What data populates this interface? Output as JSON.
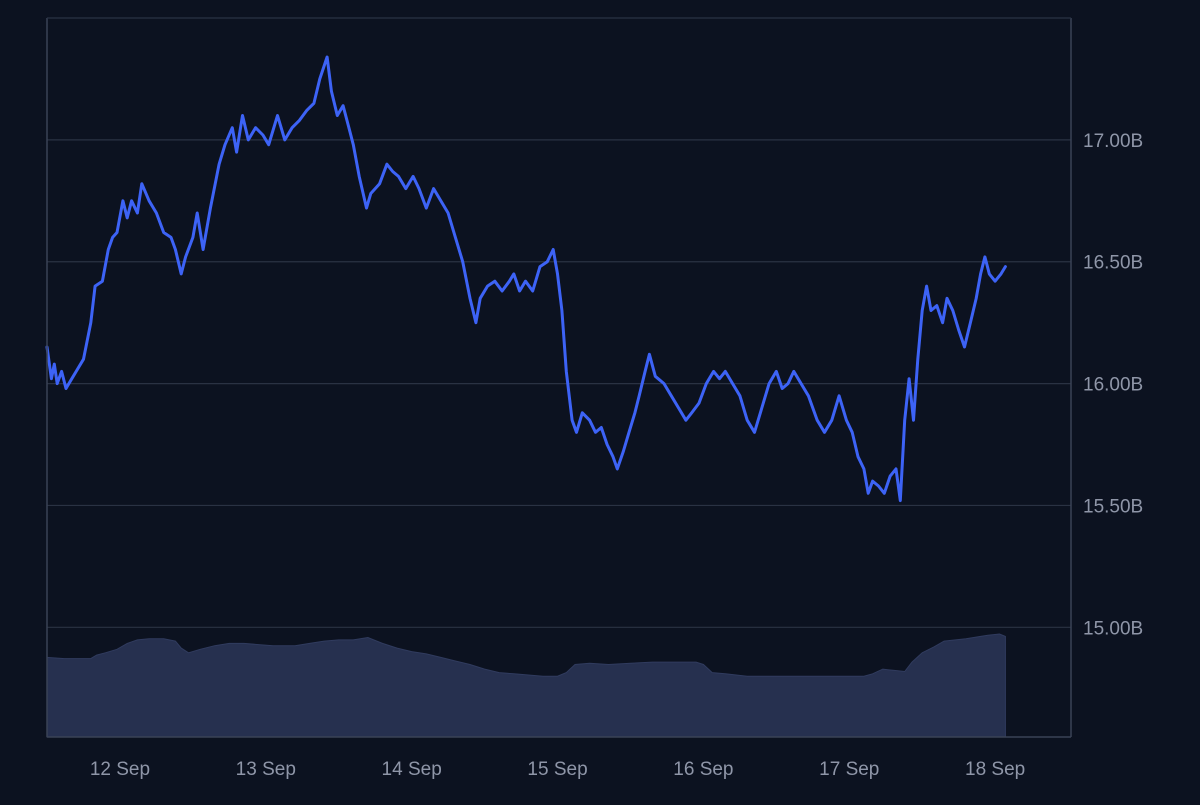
{
  "chart_data": {
    "type": "line",
    "title": "",
    "xlabel": "",
    "ylabel": "",
    "ylim": [
      14.55,
      17.5
    ],
    "xlim": [
      0,
      7.02
    ],
    "x_ticks": [
      {
        "x": 0.5,
        "label": "12 Sep"
      },
      {
        "x": 1.5,
        "label": "13 Sep"
      },
      {
        "x": 2.5,
        "label": "14 Sep"
      },
      {
        "x": 3.5,
        "label": "15 Sep"
      },
      {
        "x": 4.5,
        "label": "16 Sep"
      },
      {
        "x": 5.5,
        "label": "17 Sep"
      },
      {
        "x": 6.5,
        "label": "18 Sep"
      }
    ],
    "y_ticks": [
      {
        "value": 15.0,
        "label": "15.00B"
      },
      {
        "value": 15.5,
        "label": "15.50B"
      },
      {
        "value": 16.0,
        "label": "16.00B"
      },
      {
        "value": 16.5,
        "label": "16.50B"
      },
      {
        "value": 17.0,
        "label": "17.00B"
      }
    ],
    "grid": true,
    "line_color": "#3d63f6",
    "volume_color": "#26304f",
    "series": [
      {
        "values": [
          [
            0.0,
            16.15
          ],
          [
            0.03,
            16.02
          ],
          [
            0.05,
            16.08
          ],
          [
            0.07,
            16.0
          ],
          [
            0.1,
            16.05
          ],
          [
            0.13,
            15.98
          ],
          [
            0.17,
            16.02
          ],
          [
            0.2,
            16.05
          ],
          [
            0.25,
            16.1
          ],
          [
            0.3,
            16.25
          ],
          [
            0.33,
            16.4
          ],
          [
            0.38,
            16.42
          ],
          [
            0.42,
            16.55
          ],
          [
            0.45,
            16.6
          ],
          [
            0.48,
            16.62
          ],
          [
            0.52,
            16.75
          ],
          [
            0.55,
            16.68
          ],
          [
            0.58,
            16.75
          ],
          [
            0.62,
            16.7
          ],
          [
            0.65,
            16.82
          ],
          [
            0.7,
            16.75
          ],
          [
            0.75,
            16.7
          ],
          [
            0.8,
            16.62
          ],
          [
            0.85,
            16.6
          ],
          [
            0.88,
            16.55
          ],
          [
            0.92,
            16.45
          ],
          [
            0.95,
            16.52
          ],
          [
            1.0,
            16.6
          ],
          [
            1.03,
            16.7
          ],
          [
            1.07,
            16.55
          ],
          [
            1.12,
            16.72
          ],
          [
            1.18,
            16.9
          ],
          [
            1.22,
            16.98
          ],
          [
            1.27,
            17.05
          ],
          [
            1.3,
            16.95
          ],
          [
            1.34,
            17.1
          ],
          [
            1.38,
            17.0
          ],
          [
            1.43,
            17.05
          ],
          [
            1.48,
            17.02
          ],
          [
            1.52,
            16.98
          ],
          [
            1.58,
            17.1
          ],
          [
            1.63,
            17.0
          ],
          [
            1.68,
            17.05
          ],
          [
            1.73,
            17.08
          ],
          [
            1.78,
            17.12
          ],
          [
            1.83,
            17.15
          ],
          [
            1.87,
            17.25
          ],
          [
            1.92,
            17.34
          ],
          [
            1.95,
            17.2
          ],
          [
            1.99,
            17.1
          ],
          [
            2.03,
            17.14
          ],
          [
            2.07,
            17.05
          ],
          [
            2.1,
            16.98
          ],
          [
            2.14,
            16.85
          ],
          [
            2.19,
            16.72
          ],
          [
            2.22,
            16.78
          ],
          [
            2.28,
            16.82
          ],
          [
            2.33,
            16.9
          ],
          [
            2.37,
            16.87
          ],
          [
            2.41,
            16.85
          ],
          [
            2.46,
            16.8
          ],
          [
            2.51,
            16.85
          ],
          [
            2.55,
            16.8
          ],
          [
            2.6,
            16.72
          ],
          [
            2.65,
            16.8
          ],
          [
            2.7,
            16.75
          ],
          [
            2.75,
            16.7
          ],
          [
            2.8,
            16.6
          ],
          [
            2.85,
            16.5
          ],
          [
            2.9,
            16.35
          ],
          [
            2.94,
            16.25
          ],
          [
            2.97,
            16.35
          ],
          [
            3.02,
            16.4
          ],
          [
            3.07,
            16.42
          ],
          [
            3.12,
            16.38
          ],
          [
            3.17,
            16.42
          ],
          [
            3.2,
            16.45
          ],
          [
            3.24,
            16.38
          ],
          [
            3.28,
            16.42
          ],
          [
            3.33,
            16.38
          ],
          [
            3.38,
            16.48
          ],
          [
            3.43,
            16.5
          ],
          [
            3.47,
            16.55
          ],
          [
            3.5,
            16.45
          ],
          [
            3.53,
            16.3
          ],
          [
            3.56,
            16.05
          ],
          [
            3.6,
            15.85
          ],
          [
            3.63,
            15.8
          ],
          [
            3.67,
            15.88
          ],
          [
            3.72,
            15.85
          ],
          [
            3.76,
            15.8
          ],
          [
            3.8,
            15.82
          ],
          [
            3.84,
            15.75
          ],
          [
            3.88,
            15.7
          ],
          [
            3.91,
            15.65
          ],
          [
            3.95,
            15.72
          ],
          [
            3.99,
            15.8
          ],
          [
            4.03,
            15.88
          ],
          [
            4.06,
            15.95
          ],
          [
            4.1,
            16.05
          ],
          [
            4.13,
            16.12
          ],
          [
            4.17,
            16.03
          ],
          [
            4.23,
            16.0
          ],
          [
            4.28,
            15.95
          ],
          [
            4.33,
            15.9
          ],
          [
            4.38,
            15.85
          ],
          [
            4.42,
            15.88
          ],
          [
            4.47,
            15.92
          ],
          [
            4.52,
            16.0
          ],
          [
            4.57,
            16.05
          ],
          [
            4.61,
            16.02
          ],
          [
            4.65,
            16.05
          ],
          [
            4.7,
            16.0
          ],
          [
            4.75,
            15.95
          ],
          [
            4.8,
            15.85
          ],
          [
            4.85,
            15.8
          ],
          [
            4.9,
            15.9
          ],
          [
            4.95,
            16.0
          ],
          [
            5.0,
            16.05
          ],
          [
            5.04,
            15.98
          ],
          [
            5.08,
            16.0
          ],
          [
            5.12,
            16.05
          ],
          [
            5.17,
            16.0
          ],
          [
            5.22,
            15.95
          ],
          [
            5.28,
            15.85
          ],
          [
            5.33,
            15.8
          ],
          [
            5.38,
            15.85
          ],
          [
            5.43,
            15.95
          ],
          [
            5.48,
            15.85
          ],
          [
            5.52,
            15.8
          ],
          [
            5.56,
            15.7
          ],
          [
            5.6,
            15.65
          ],
          [
            5.63,
            15.55
          ],
          [
            5.66,
            15.6
          ],
          [
            5.7,
            15.58
          ],
          [
            5.74,
            15.55
          ],
          [
            5.78,
            15.62
          ],
          [
            5.82,
            15.65
          ],
          [
            5.85,
            15.52
          ],
          [
            5.88,
            15.85
          ],
          [
            5.91,
            16.02
          ],
          [
            5.94,
            15.85
          ],
          [
            5.97,
            16.1
          ],
          [
            6.0,
            16.3
          ],
          [
            6.03,
            16.4
          ],
          [
            6.06,
            16.3
          ],
          [
            6.1,
            16.32
          ],
          [
            6.14,
            16.25
          ],
          [
            6.17,
            16.35
          ],
          [
            6.21,
            16.3
          ],
          [
            6.25,
            16.22
          ],
          [
            6.29,
            16.15
          ],
          [
            6.33,
            16.25
          ],
          [
            6.37,
            16.35
          ],
          [
            6.4,
            16.45
          ],
          [
            6.43,
            16.52
          ],
          [
            6.46,
            16.45
          ],
          [
            6.5,
            16.42
          ],
          [
            6.54,
            16.45
          ],
          [
            6.57,
            16.48
          ]
        ]
      }
    ],
    "volume": {
      "min": 0,
      "max": 1.0,
      "points": [
        [
          0.0,
          0.68
        ],
        [
          0.12,
          0.67
        ],
        [
          0.3,
          0.67
        ],
        [
          0.34,
          0.7
        ],
        [
          0.4,
          0.72
        ],
        [
          0.48,
          0.75
        ],
        [
          0.55,
          0.8
        ],
        [
          0.62,
          0.83
        ],
        [
          0.7,
          0.84
        ],
        [
          0.8,
          0.84
        ],
        [
          0.88,
          0.82
        ],
        [
          0.92,
          0.76
        ],
        [
          0.97,
          0.72
        ],
        [
          1.05,
          0.75
        ],
        [
          1.15,
          0.78
        ],
        [
          1.25,
          0.8
        ],
        [
          1.35,
          0.8
        ],
        [
          1.45,
          0.79
        ],
        [
          1.55,
          0.78
        ],
        [
          1.7,
          0.78
        ],
        [
          1.8,
          0.8
        ],
        [
          1.9,
          0.82
        ],
        [
          2.0,
          0.83
        ],
        [
          2.1,
          0.83
        ],
        [
          2.2,
          0.85
        ],
        [
          2.3,
          0.8
        ],
        [
          2.4,
          0.76
        ],
        [
          2.5,
          0.73
        ],
        [
          2.6,
          0.71
        ],
        [
          2.7,
          0.68
        ],
        [
          2.8,
          0.65
        ],
        [
          2.9,
          0.62
        ],
        [
          3.0,
          0.58
        ],
        [
          3.1,
          0.55
        ],
        [
          3.2,
          0.54
        ],
        [
          3.3,
          0.53
        ],
        [
          3.4,
          0.52
        ],
        [
          3.5,
          0.52
        ],
        [
          3.56,
          0.55
        ],
        [
          3.62,
          0.62
        ],
        [
          3.72,
          0.63
        ],
        [
          3.85,
          0.62
        ],
        [
          4.0,
          0.63
        ],
        [
          4.15,
          0.64
        ],
        [
          4.25,
          0.64
        ],
        [
          4.35,
          0.64
        ],
        [
          4.45,
          0.64
        ],
        [
          4.5,
          0.62
        ],
        [
          4.56,
          0.55
        ],
        [
          4.65,
          0.54
        ],
        [
          4.8,
          0.52
        ],
        [
          5.0,
          0.52
        ],
        [
          5.2,
          0.52
        ],
        [
          5.4,
          0.52
        ],
        [
          5.6,
          0.52
        ],
        [
          5.66,
          0.54
        ],
        [
          5.73,
          0.58
        ],
        [
          5.8,
          0.57
        ],
        [
          5.88,
          0.56
        ],
        [
          5.93,
          0.64
        ],
        [
          6.0,
          0.72
        ],
        [
          6.08,
          0.77
        ],
        [
          6.15,
          0.82
        ],
        [
          6.3,
          0.84
        ],
        [
          6.45,
          0.87
        ],
        [
          6.53,
          0.88
        ],
        [
          6.57,
          0.86
        ]
      ]
    }
  }
}
